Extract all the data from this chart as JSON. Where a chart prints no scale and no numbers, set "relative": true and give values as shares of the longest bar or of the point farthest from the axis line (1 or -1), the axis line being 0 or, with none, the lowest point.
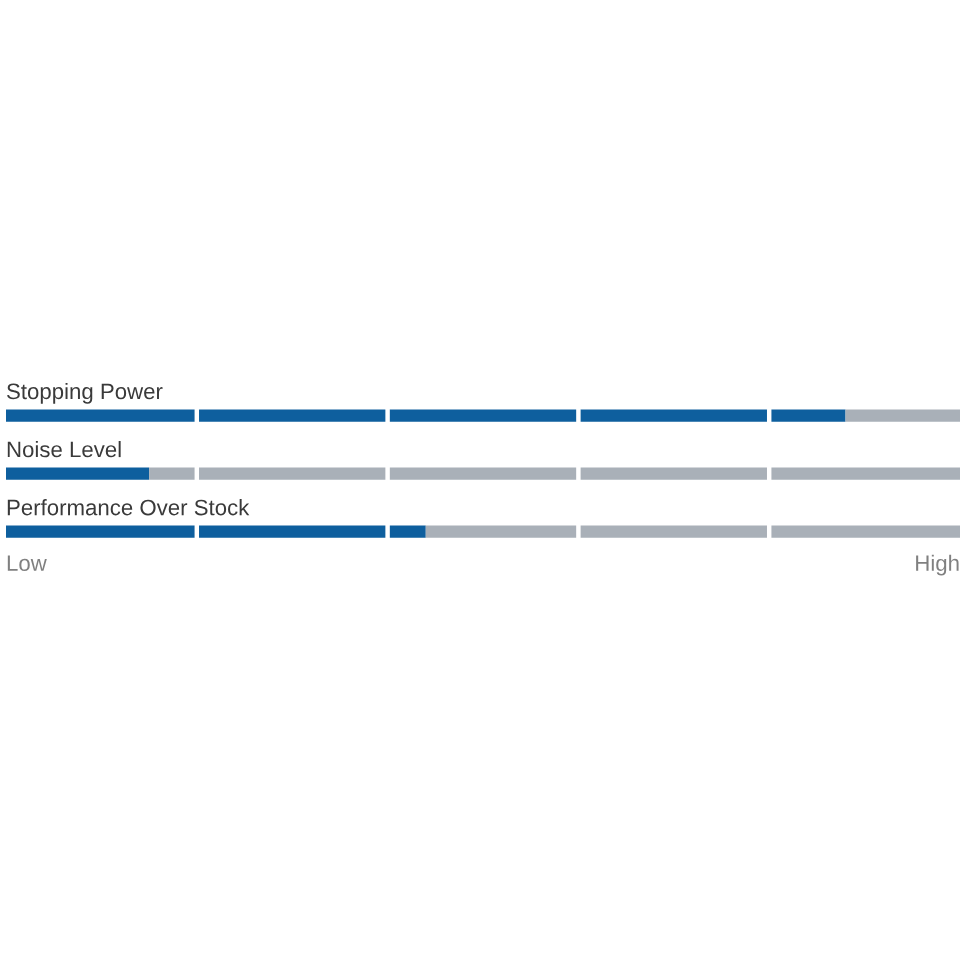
{
  "chart_data": {
    "type": "bar",
    "orientation": "horizontal",
    "stacked": true,
    "relative": true,
    "categories": [
      "Stopping Power",
      "Noise Level",
      "Performance Over Stock"
    ],
    "series": [
      {
        "color": "#0e5f9e",
        "values": [
          0.88,
          0.15,
          0.44
        ]
      },
      {
        "color": "#a9b0b8",
        "values": [
          0.12,
          0.85,
          0.56
        ]
      }
    ],
    "ref_lines": [
      {
        "axis": "x",
        "value": 0.2,
        "color": "#ffffff"
      },
      {
        "axis": "x",
        "value": 0.4,
        "color": "#ffffff"
      },
      {
        "axis": "x",
        "value": 0.6,
        "color": "#ffffff"
      },
      {
        "axis": "x",
        "value": 0.8,
        "color": "#ffffff"
      }
    ],
    "annotations": [
      "Low",
      "High"
    ]
  }
}
